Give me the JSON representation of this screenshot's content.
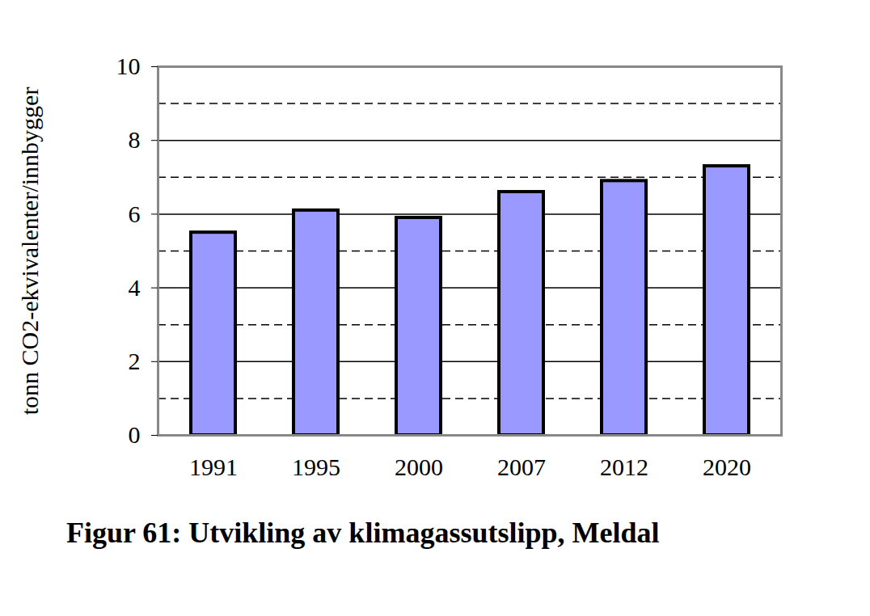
{
  "chart_data": {
    "type": "bar",
    "title": "Figur 61: Utvikling av klimagassutslipp, Meldal",
    "y_label": "tonn CO2-ekvivalenter/innbygger",
    "categories": [
      "1991",
      "1995",
      "2000",
      "2007",
      "2012",
      "2020"
    ],
    "values": [
      5.5,
      6.1,
      5.9,
      6.6,
      6.9,
      7.3
    ],
    "color": "#9999ff",
    "ylim": [
      0,
      10
    ],
    "yticks": [
      0,
      2,
      4,
      6,
      8,
      10
    ],
    "grid": true
  }
}
